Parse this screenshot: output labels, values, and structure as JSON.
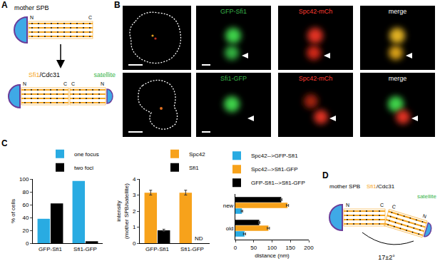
{
  "panels": {
    "A": {
      "letter": "A",
      "mother": "mother SPB",
      "n": "N",
      "c": "C",
      "sfi1": "Sfi1",
      "cdc31": "/Cdc31",
      "satellite": "satellite"
    },
    "B": {
      "letter": "B",
      "row1": [
        "GFP-Sfi1",
        "Spc42-mCh",
        "merge"
      ],
      "row2": [
        "Sfi1-GFP",
        "Spc42-mCh",
        "merge"
      ]
    },
    "C": {
      "letter": "C"
    },
    "D": {
      "letter": "D",
      "mother": "mother SPB",
      "n": "N",
      "c": "C",
      "sfi1": "Sfi1",
      "cdc31": "/Cdc31",
      "satellite": "satellite",
      "angle": "17±2°"
    }
  },
  "chart_data": [
    {
      "type": "bar",
      "y_label": "% of cells",
      "categories": [
        "GFP-Sfi1",
        "Sfi1-GFP"
      ],
      "series": [
        {
          "name": "one focus",
          "color": "#29abe2",
          "values": [
            38,
            97
          ]
        },
        {
          "name": "two foci",
          "color": "#000000",
          "values": [
            62,
            3
          ]
        }
      ],
      "ylim": [
        0,
        100
      ],
      "yticks": [
        0,
        20,
        40,
        60,
        80,
        100
      ],
      "grid": false,
      "legend": "top right"
    },
    {
      "type": "bar",
      "y_label": "intensity (mother SPB/satellite)",
      "categories": [
        "GFP-Sfi1",
        "Sfi1-GFP"
      ],
      "series": [
        {
          "name": "Spc42",
          "color": "#f7a21b",
          "values": [
            3.15,
            3.15
          ],
          "errors": [
            0.15,
            0.15
          ]
        },
        {
          "name": "Sfi1",
          "color": "#000000",
          "values": [
            0.8,
            null
          ],
          "errors": [
            0.07,
            null
          ]
        }
      ],
      "annotations": [
        {
          "text": "ND",
          "category": "Sfi1-GFP",
          "series": "Sfi1"
        }
      ],
      "ylim": [
        0,
        4
      ],
      "yticks": [
        0,
        1,
        2,
        3,
        4
      ],
      "grid": false,
      "legend": "top right"
    },
    {
      "type": "bar",
      "orientation": "horizontal",
      "x_label": "distance (nm)",
      "categories": [
        "old",
        "new"
      ],
      "series": [
        {
          "name": "Spc42-->GFP-Sfi1",
          "color": "#29abe2",
          "values": [
            25,
            18
          ],
          "errors": [
            3,
            2
          ]
        },
        {
          "name": "Spc42-->Sfi1-GFP",
          "color": "#f7a21b",
          "values": [
            90,
            142
          ],
          "errors": [
            3,
            3
          ]
        },
        {
          "name": "GFP-Sfi1-->Sfi1-GFP",
          "color": "#000000",
          "values": [
            65,
            125
          ],
          "errors": [
            2,
            2
          ]
        }
      ],
      "xlim": [
        0,
        200
      ],
      "xticks": [
        0,
        50,
        100,
        150,
        200
      ],
      "grid": false,
      "legend": "top right"
    }
  ]
}
